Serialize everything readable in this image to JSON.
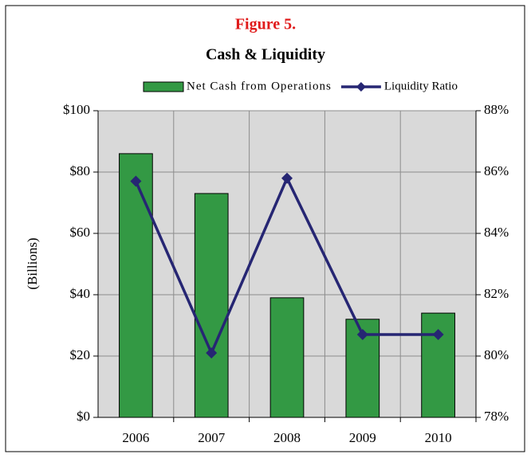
{
  "chart_data": {
    "type": "bar_line",
    "title": "Figure 5.",
    "subtitle": "Cash & Liquidity",
    "y_label": "(Billions)",
    "categories": [
      "2006",
      "2007",
      "2008",
      "2009",
      "2010"
    ],
    "series": [
      {
        "name": "Net Cash from Operations",
        "type": "bar",
        "color": "#339944",
        "values": [
          86,
          73,
          39,
          32,
          34
        ]
      },
      {
        "name": "Liquidity Ratio",
        "type": "line",
        "color": "#262673",
        "axis": "y2",
        "values": [
          85.7,
          80.1,
          85.8,
          80.7,
          80.7
        ]
      }
    ],
    "ylim": [
      0,
      100
    ],
    "yticks": [
      {
        "value": 0,
        "label": "$0"
      },
      {
        "value": 20,
        "label": "$20"
      },
      {
        "value": 40,
        "label": "$40"
      },
      {
        "value": 60,
        "label": "$60"
      },
      {
        "value": 80,
        "label": "$80"
      },
      {
        "value": 100,
        "label": "$100"
      }
    ],
    "y2lim": [
      78,
      88
    ],
    "y2ticks": [
      {
        "value": 78,
        "label": "78%"
      },
      {
        "value": 80,
        "label": "80%"
      },
      {
        "value": 82,
        "label": "82%"
      },
      {
        "value": 84,
        "label": "84%"
      },
      {
        "value": 86,
        "label": "86%"
      },
      {
        "value": 88,
        "label": "88%"
      }
    ],
    "grid": true,
    "legend": "top"
  }
}
